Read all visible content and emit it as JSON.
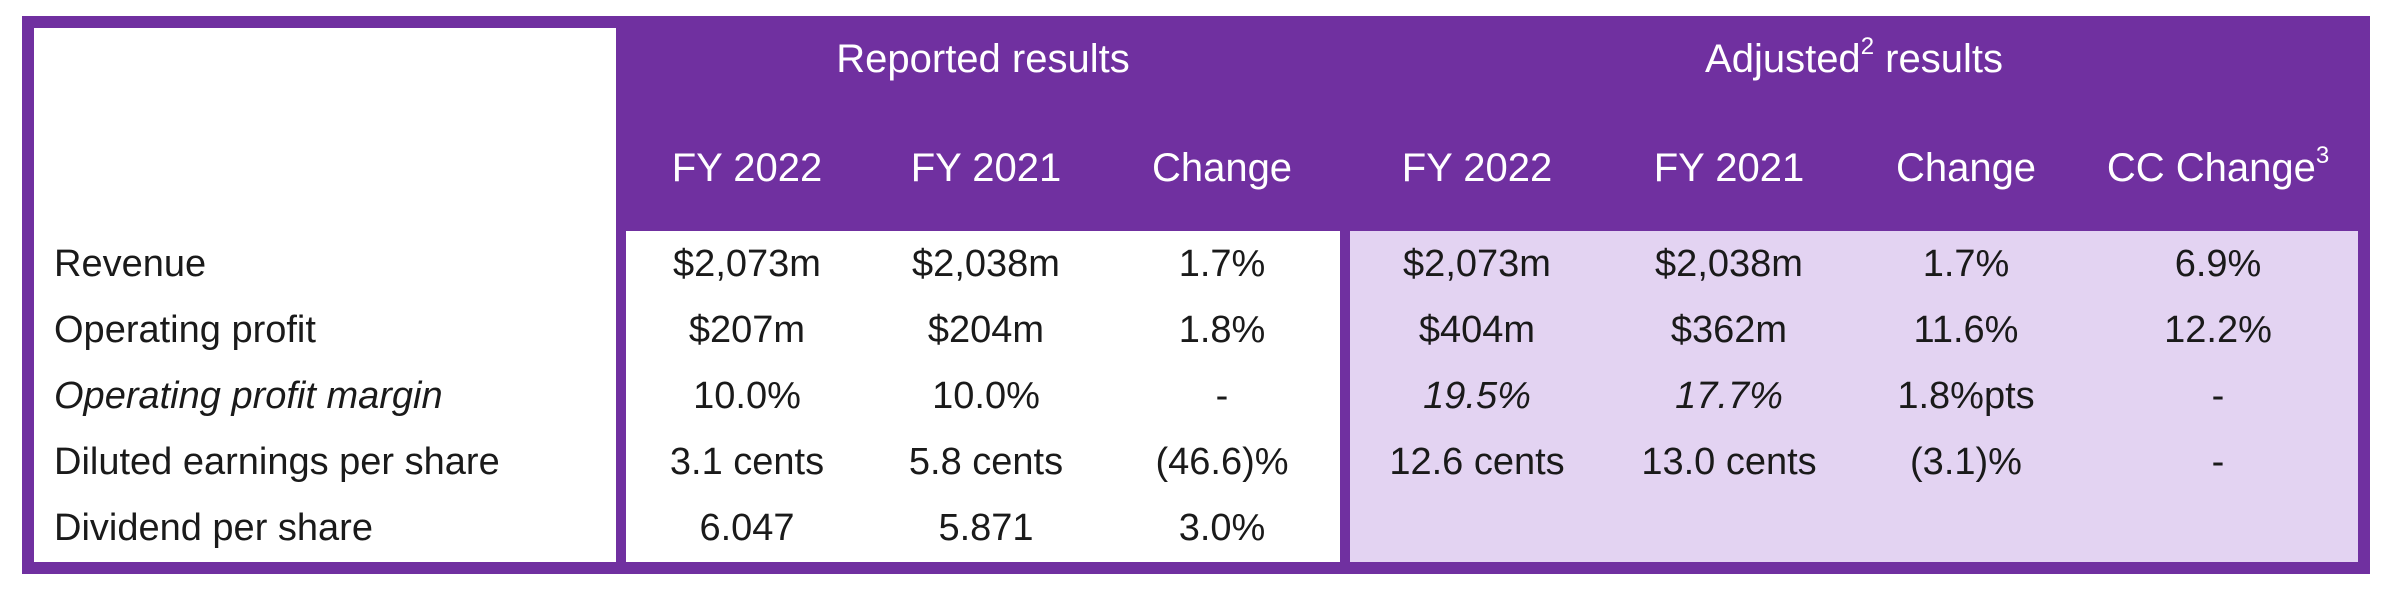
{
  "header": {
    "reported_title": "Reported results",
    "adjusted_title": "Adjusted",
    "adjusted_title_sup": "2",
    "adjusted_title_suffix": " results",
    "columns": {
      "reported_fy2022": "FY 2022",
      "reported_fy2021": "FY 2021",
      "reported_change": "Change",
      "adjusted_fy2022": "FY 2022",
      "adjusted_fy2021": "FY 2021",
      "adjusted_change": "Change",
      "cc_change": "CC Change",
      "cc_change_sup": "3"
    }
  },
  "rows": [
    {
      "label": "Revenue",
      "rep_2022": "$2,073m",
      "rep_2021": "$2,038m",
      "rep_change": "1.7%",
      "adj_2022": "$2,073m",
      "adj_2021": "$2,038m",
      "adj_change": "1.7%",
      "cc_change": "6.9%"
    },
    {
      "label": "Operating profit",
      "rep_2022": "$207m",
      "rep_2021": "$204m",
      "rep_change": "1.8%",
      "adj_2022": "$404m",
      "adj_2021": "$362m",
      "adj_change": "11.6%",
      "cc_change": "12.2%"
    },
    {
      "label": "Operating profit margin",
      "rep_2022": "10.0%",
      "rep_2021": "10.0%",
      "rep_change": "-",
      "adj_2022": "19.5%",
      "adj_2021": "17.7%",
      "adj_change": "1.8%pts",
      "cc_change": "-"
    },
    {
      "label": "Diluted earnings per share",
      "rep_2022": "3.1 cents",
      "rep_2021": "5.8 cents",
      "rep_change": "(46.6)%",
      "adj_2022": "12.6 cents",
      "adj_2021": "13.0 cents",
      "adj_change": "(3.1)%",
      "cc_change": "-"
    },
    {
      "label": "Dividend per share",
      "rep_2022": "6.047",
      "rep_2021": "5.871",
      "rep_change": "3.0%",
      "adj_2022": "",
      "adj_2021": "",
      "adj_change": "",
      "cc_change": ""
    }
  ],
  "colors": {
    "frame_purple": "#7030a0",
    "adjusted_fill": "#e3d3f2",
    "header_text": "#ffffff"
  }
}
